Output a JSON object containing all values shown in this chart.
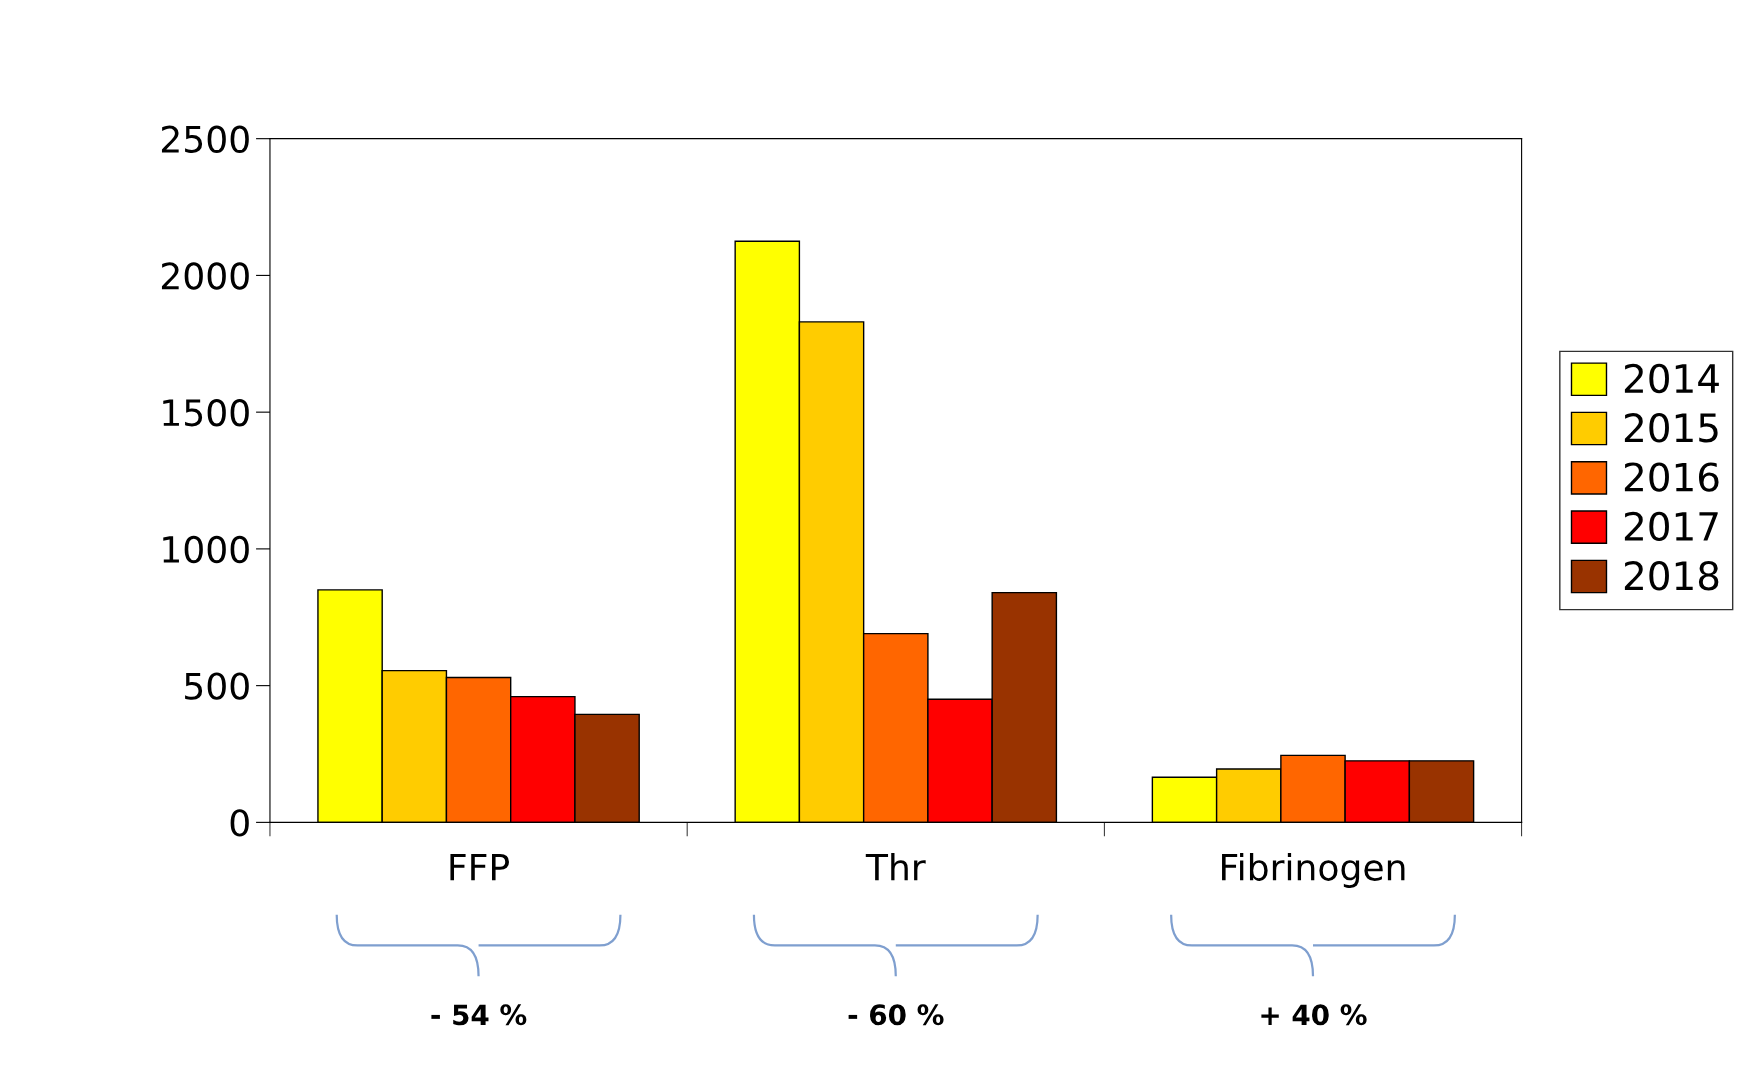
{
  "chart_data": {
    "type": "bar",
    "categories": [
      "FFP",
      "Thr",
      "Fibrinogen"
    ],
    "series": [
      {
        "name": "2014",
        "color": "#ffff00",
        "values": [
          850,
          2125,
          165
        ]
      },
      {
        "name": "2015",
        "color": "#ffcc00",
        "values": [
          555,
          1830,
          195
        ]
      },
      {
        "name": "2016",
        "color": "#ff6600",
        "values": [
          530,
          690,
          245
        ]
      },
      {
        "name": "2017",
        "color": "#ff0000",
        "values": [
          460,
          450,
          225
        ]
      },
      {
        "name": "2018",
        "color": "#993300",
        "values": [
          395,
          840,
          225
        ]
      }
    ],
    "ylim": [
      0,
      2500
    ],
    "yticks": [
      0,
      500,
      1000,
      1500,
      2000,
      2500
    ],
    "annotations": [
      "- 54 %",
      "- 60 %",
      "+ 40 %"
    ],
    "legend": "right",
    "grid": false
  }
}
